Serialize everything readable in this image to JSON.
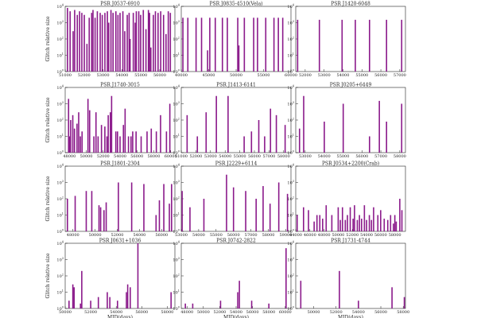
{
  "figure": {
    "xlabel": "MJD(days)",
    "ylabel": "Glitch relative size",
    "bar_color": "#8b1a8b"
  },
  "chart_data": [
    {
      "type": "bar",
      "title": "PSR J0537-6910",
      "xlim": [
        51000,
        56800
      ],
      "xticks": [
        51000,
        52000,
        53000,
        54000,
        55000,
        56000
      ],
      "ylim": [
        1,
        10000
      ],
      "yscale": "log",
      "x": [
        51120,
        51260,
        51420,
        51500,
        51640,
        51760,
        51880,
        52010,
        52150,
        52270,
        52400,
        52470,
        52580,
        52700,
        52850,
        52960,
        53100,
        53230,
        53300,
        53420,
        53530,
        53680,
        53790,
        53900,
        54050,
        54150,
        54280,
        54380,
        54430,
        54600,
        54700,
        54760,
        54890,
        54990,
        55130,
        55270,
        55400,
        55460,
        55530,
        55660,
        55770,
        55910,
        56050,
        56200,
        56330,
        56450,
        56560
      ],
      "values": [
        8000,
        5000,
        300,
        6000,
        3000,
        5000,
        4000,
        3000,
        50,
        2000,
        4000,
        6000,
        2000,
        5000,
        4000,
        3000,
        4000,
        5000,
        1000,
        6000,
        4000,
        5000,
        3000,
        4000,
        5000,
        300,
        3000,
        4000,
        100,
        4000,
        1000,
        5000,
        5000,
        3000,
        6000,
        400,
        6000,
        4000,
        30,
        3000,
        5000,
        4000,
        5000,
        3000,
        200,
        5000,
        4000
      ]
    },
    {
      "type": "bar",
      "title": "PSR J0835-4510(Vela)",
      "xlim": [
        40000,
        60000
      ],
      "xticks": [
        40000,
        45000,
        50000,
        55000,
        60000
      ],
      "ylim": [
        1,
        10000
      ],
      "yscale": "log",
      "x": [
        40300,
        41200,
        42700,
        43700,
        44800,
        45200,
        46200,
        47500,
        48400,
        50300,
        50500,
        51500,
        53200,
        53900,
        55400,
        56900,
        57700,
        58500
      ],
      "values": [
        2000,
        2000,
        2000,
        2000,
        20,
        2000,
        2000,
        2000,
        2000,
        2000,
        40,
        2000,
        2000,
        2000,
        2000,
        2000,
        2000,
        2000
      ]
    },
    {
      "type": "bar",
      "title": "PSR J1420-6048",
      "xlim": [
        51500,
        57300
      ],
      "xticks": [
        52000,
        53000,
        54000,
        55000,
        56000,
        57000
      ],
      "ylim": [
        1,
        10000
      ],
      "yscale": "log",
      "x": [
        51600,
        52750,
        53950,
        54650,
        55400,
        56300,
        57100
      ],
      "values": [
        1500,
        1500,
        1500,
        1500,
        1500,
        1500,
        1500
      ]
    },
    {
      "type": "bar",
      "title": "PSR J1740-3015",
      "xlim": [
        47500,
        60500
      ],
      "xticks": [
        48000,
        50000,
        52000,
        54000,
        56000,
        58000,
        60000
      ],
      "ylim": [
        1,
        10000
      ],
      "yscale": "log",
      "x": [
        47900,
        48000,
        48150,
        48400,
        48600,
        48900,
        49100,
        49300,
        49500,
        50200,
        50400,
        50900,
        51150,
        51400,
        51800,
        52200,
        52450,
        52600,
        52850,
        53000,
        53500,
        53700,
        54000,
        54400,
        54600,
        55000,
        55300,
        55500,
        55900,
        56500,
        57200,
        57700,
        58300,
        58800,
        59500,
        59900
      ],
      "values": [
        2000,
        10,
        100,
        200,
        30,
        60,
        300,
        10,
        20,
        2000,
        400,
        10,
        300,
        10,
        50,
        40,
        10,
        200,
        300,
        3000,
        20,
        20,
        10,
        50,
        500,
        10,
        10,
        20,
        20,
        10,
        20,
        30,
        20,
        200,
        20,
        1000
      ]
    },
    {
      "type": "bar",
      "title": "PSR J1413-6141",
      "xlim": [
        51000,
        58500
      ],
      "xticks": [
        51000,
        52000,
        53000,
        54000,
        55000,
        56000,
        57000,
        58000
      ],
      "ylim": [
        1,
        10000
      ],
      "yscale": "log",
      "x": [
        51400,
        52100,
        52700,
        53400,
        54200,
        55300,
        55800,
        56300,
        56700,
        57100,
        57500,
        58100
      ],
      "values": [
        200,
        10,
        300,
        3000,
        3000,
        10,
        20,
        100,
        10,
        500,
        200,
        50
      ]
    },
    {
      "type": "bar",
      "title": "PSR J0205+6449",
      "xlim": [
        52500,
        58300
      ],
      "xticks": [
        53000,
        54000,
        55000,
        56000,
        57000,
        58000
      ],
      "ylim": [
        1,
        10000
      ],
      "yscale": "log",
      "x": [
        52700,
        52920,
        54010,
        55010,
        56400,
        56920,
        57300,
        58100
      ],
      "values": [
        30,
        3000,
        80,
        1000,
        10,
        1500,
        80,
        1000
      ]
    },
    {
      "type": "bar",
      "title": "PSR J1801-2304",
      "xlim": [
        47300,
        57200
      ],
      "xticks": [
        48000,
        50000,
        52000,
        54000,
        56000
      ],
      "ylim": [
        1,
        10000
      ],
      "yscale": "log",
      "x": [
        47500,
        48200,
        49200,
        49700,
        50350,
        50500,
        50800,
        51000,
        52100,
        53300,
        54400,
        55500,
        55800,
        56200,
        56700,
        56900
      ],
      "values": [
        100,
        150,
        300,
        300,
        40,
        30,
        20,
        60,
        1000,
        1000,
        800,
        10,
        80,
        800,
        50,
        800
      ]
    },
    {
      "type": "bar",
      "title": "PSR J2229+6114",
      "xlim": [
        53000,
        59300
      ],
      "xticks": [
        53000,
        54000,
        55000,
        56000,
        57000,
        58000,
        59000
      ],
      "ylim": [
        1,
        10000
      ],
      "yscale": "log",
      "x": [
        53050,
        53500,
        54300,
        55600,
        56000,
        56700,
        57300,
        57700,
        58100,
        58600,
        59100
      ],
      "values": [
        300,
        30,
        100,
        3000,
        500,
        300,
        100,
        600,
        50,
        1000,
        200
      ]
    },
    {
      "type": "bar",
      "title": "PSR J0534+2200(Crab)",
      "xlim": [
        44000,
        59500
      ],
      "xticks": [
        44000,
        46000,
        48000,
        50000,
        52000,
        54000,
        56000,
        58000
      ],
      "ylim": [
        1,
        10000
      ],
      "yscale": "log",
      "x": [
        44200,
        45100,
        45800,
        46600,
        47000,
        47400,
        47800,
        48300,
        49100,
        50000,
        50300,
        50600,
        51000,
        51300,
        51700,
        52100,
        52300,
        52700,
        53000,
        53300,
        53700,
        54000,
        54400,
        54700,
        55000,
        55600,
        56000,
        56500,
        57000,
        57400,
        57800,
        58000,
        58200,
        58700,
        59000
      ],
      "values": [
        10,
        30,
        20,
        4,
        10,
        10,
        6,
        40,
        10,
        30,
        5,
        30,
        5,
        10,
        30,
        6,
        40,
        5,
        10,
        6,
        40,
        5,
        10,
        5,
        30,
        10,
        20,
        6,
        5,
        10,
        3,
        10,
        4,
        100,
        20
      ]
    },
    {
      "type": "bar",
      "title": "PSR J0631+1036",
      "xlim": [
        50000,
        58600
      ],
      "xticks": [
        50000,
        52000,
        54000,
        56000,
        58000
      ],
      "ylim": [
        1,
        10000
      ],
      "yscale": "log",
      "x": [
        50300,
        50600,
        50700,
        51200,
        51300,
        52000,
        52600,
        53300,
        53500,
        54100,
        54800,
        54900,
        55100,
        55700,
        58300
      ],
      "values": [
        3,
        30,
        20,
        2,
        200,
        3,
        5,
        10,
        5,
        3,
        10,
        30,
        20,
        10000,
        10
      ]
    },
    {
      "type": "bar",
      "title": "PSR J0742-2822",
      "xlim": [
        47300,
        60700
      ],
      "xticks": [
        48000,
        50000,
        52000,
        54000,
        56000,
        58000,
        60000
      ],
      "ylim": [
        1,
        10000
      ],
      "yscale": "log",
      "x": [
        47800,
        48700,
        52100,
        54200,
        54400,
        55900,
        58000,
        60100
      ],
      "values": [
        2,
        2,
        3,
        10,
        50,
        3,
        2,
        5000
      ]
    },
    {
      "type": "bar",
      "title": "PSR J1731-4744",
      "xlim": [
        48400,
        58200
      ],
      "xticks": [
        50000,
        52000,
        54000,
        56000,
        58000
      ],
      "ylim": [
        1,
        10000
      ],
      "yscale": "log",
      "x": [
        48850,
        52300,
        54000,
        57000,
        58100
      ],
      "values": [
        50,
        200,
        3,
        20,
        5
      ]
    }
  ]
}
